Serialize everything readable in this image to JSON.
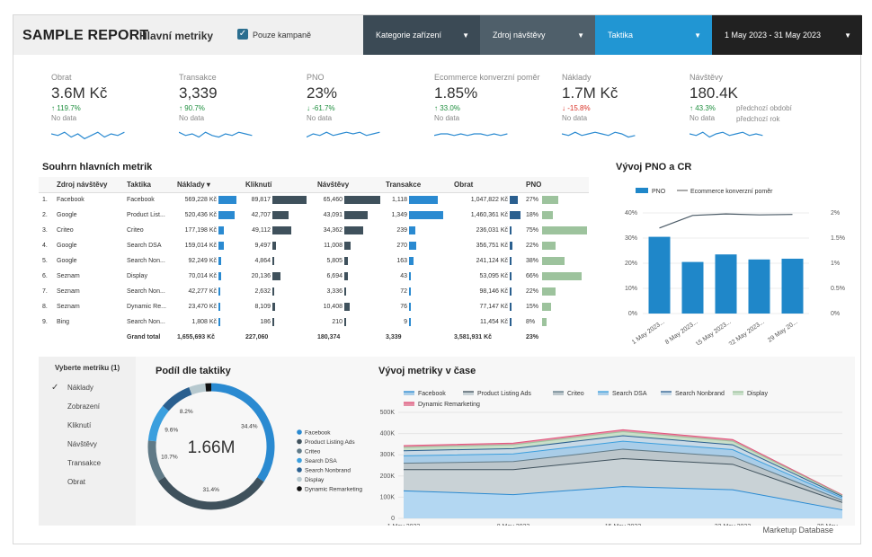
{
  "header": {
    "brand": "SAMPLE REPORT",
    "subtitle": "Hlavní metriky",
    "checkbox_label": "Pouze kampaně",
    "filters": [
      {
        "label": "Kategorie zařízení",
        "color": "#3b4a55"
      },
      {
        "label": "Zdroj návštěvy",
        "color": "#4f5f6a"
      },
      {
        "label": "Taktika",
        "color": "#2196d3"
      },
      {
        "label": "1 May 2023 - 31 May 2023",
        "color": "#212121"
      }
    ]
  },
  "kpis": [
    {
      "label": "Obrat",
      "value": "3.6M Kč",
      "change": "↑ 119.7%",
      "dir": "up",
      "note": "No data"
    },
    {
      "label": "Transakce",
      "value": "3,339",
      "change": "↑ 90.7%",
      "dir": "up",
      "note": "No data"
    },
    {
      "label": "PNO",
      "value": "23%",
      "change": "↓ -61.7%",
      "dir": "up",
      "note": "No data"
    },
    {
      "label": "Ecommerce konverzní poměr",
      "value": "1.85%",
      "change": "↑ 33.0%",
      "dir": "up",
      "note": "No data"
    },
    {
      "label": "Náklady",
      "value": "1.7M Kč",
      "change": "↓ -15.8%",
      "dir": "down",
      "note": "No data"
    },
    {
      "label": "Návštěvy",
      "value": "180.4K",
      "change": "↑ 43.3%",
      "dir": "up",
      "note": "No data",
      "extra1": "předchozí období",
      "extra2": "předchozí rok"
    }
  ],
  "summary": {
    "title": "Souhrn hlavních metrik",
    "headers": [
      "",
      "Zdroj návštěvy",
      "Taktika",
      "Náklady ▾",
      "Kliknutí",
      "Návštěvy",
      "Transakce",
      "Obrat",
      "PNO"
    ],
    "rows": [
      {
        "n": "1.",
        "src": "Facebook",
        "tac": "Facebook",
        "cost": "569,228 Kč",
        "cost_v": 569228,
        "clk": "89,817",
        "clk_v": 89817,
        "vis": "65,460",
        "vis_v": 65460,
        "trx": "1,118",
        "trx_v": 1118,
        "rev": "1,047,822 Kč",
        "rev_v": 1047822,
        "pno": "27%",
        "pno_v": 27
      },
      {
        "n": "2.",
        "src": "Google",
        "tac": "Product List...",
        "cost": "520,436 Kč",
        "cost_v": 520436,
        "clk": "42,707",
        "clk_v": 42707,
        "vis": "43,091",
        "vis_v": 43091,
        "trx": "1,349",
        "trx_v": 1349,
        "rev": "1,460,361 Kč",
        "rev_v": 1460361,
        "pno": "18%",
        "pno_v": 18
      },
      {
        "n": "3.",
        "src": "Criteo",
        "tac": "Criteo",
        "cost": "177,198 Kč",
        "cost_v": 177198,
        "clk": "49,112",
        "clk_v": 49112,
        "vis": "34,362",
        "vis_v": 34362,
        "trx": "239",
        "trx_v": 239,
        "rev": "236,031 Kč",
        "rev_v": 236031,
        "pno": "75%",
        "pno_v": 75
      },
      {
        "n": "4.",
        "src": "Google",
        "tac": "Search DSA",
        "cost": "159,014 Kč",
        "cost_v": 159014,
        "clk": "9,497",
        "clk_v": 9497,
        "vis": "11,008",
        "vis_v": 11008,
        "trx": "270",
        "trx_v": 270,
        "rev": "356,751 Kč",
        "rev_v": 356751,
        "pno": "22%",
        "pno_v": 22
      },
      {
        "n": "5.",
        "src": "Google",
        "tac": "Search Non...",
        "cost": "92,249 Kč",
        "cost_v": 92249,
        "clk": "4,864",
        "clk_v": 4864,
        "vis": "5,805",
        "vis_v": 5805,
        "trx": "163",
        "trx_v": 163,
        "rev": "241,124 Kč",
        "rev_v": 241124,
        "pno": "38%",
        "pno_v": 38
      },
      {
        "n": "6.",
        "src": "Seznam",
        "tac": "Display",
        "cost": "70,014 Kč",
        "cost_v": 70014,
        "clk": "20,136",
        "clk_v": 20136,
        "vis": "6,694",
        "vis_v": 6694,
        "trx": "43",
        "trx_v": 43,
        "rev": "53,095 Kč",
        "rev_v": 53095,
        "pno": "66%",
        "pno_v": 66
      },
      {
        "n": "7.",
        "src": "Seznam",
        "tac": "Search Non...",
        "cost": "42,277 Kč",
        "cost_v": 42277,
        "clk": "2,632",
        "clk_v": 2632,
        "vis": "3,336",
        "vis_v": 3336,
        "trx": "72",
        "trx_v": 72,
        "rev": "98,146 Kč",
        "rev_v": 98146,
        "pno": "22%",
        "pno_v": 22
      },
      {
        "n": "8.",
        "src": "Seznam",
        "tac": "Dynamic Re...",
        "cost": "23,470 Kč",
        "cost_v": 23470,
        "clk": "8,109",
        "clk_v": 8109,
        "vis": "10,408",
        "vis_v": 10408,
        "trx": "76",
        "trx_v": 76,
        "rev": "77,147 Kč",
        "rev_v": 77147,
        "pno": "15%",
        "pno_v": 15
      },
      {
        "n": "9.",
        "src": "Bing",
        "tac": "Search Non...",
        "cost": "1,808 Kč",
        "cost_v": 1808,
        "clk": "186",
        "clk_v": 186,
        "vis": "210",
        "vis_v": 210,
        "trx": "9",
        "trx_v": 9,
        "rev": "11,454 Kč",
        "rev_v": 11454,
        "pno": "8%",
        "pno_v": 8
      }
    ],
    "total": {
      "label": "Grand total",
      "cost": "1,655,693 Kč",
      "clk": "227,060",
      "vis": "180,374",
      "trx": "3,339",
      "rev": "3,581,931 Kč",
      "pno": "23%"
    }
  },
  "metric_selector": {
    "title": "Vyberte metriku (1)",
    "items": [
      "Náklady",
      "Zobrazení",
      "Kliknutí",
      "Návštěvy",
      "Transakce",
      "Obrat"
    ]
  },
  "footer": "Marketup Database",
  "chart_data": [
    {
      "type": "bar",
      "title": "Vývoj PNO a CR",
      "legend": [
        "PNO",
        "Ecommerce konverzní poměr"
      ],
      "categories": [
        "1 May 2023...",
        "8 May 2023...",
        "15 May 2023...",
        "22 May 2023...",
        "29 May 20..."
      ],
      "series": [
        {
          "name": "PNO",
          "values": [
            30.5,
            20.5,
            23.5,
            21.5,
            21.8
          ]
        },
        {
          "name": "Ecommerce konverzní poměr",
          "values": [
            1.7,
            1.95,
            1.98,
            1.96,
            1.97
          ]
        }
      ],
      "y_ticks": [
        "0%",
        "10%",
        "20%",
        "30%",
        "40%"
      ],
      "y2_ticks": [
        "0%",
        "0.5%",
        "1%",
        "1.5%",
        "2%"
      ],
      "ylim": [
        0,
        40
      ],
      "y2lim": [
        0,
        2
      ]
    },
    {
      "type": "pie",
      "title": "Podíl dle taktiky",
      "center_label": "1.66M",
      "labels": [
        "Facebook",
        "Product Listing Ads",
        "Criteo",
        "Search DSA",
        "Search Nonbrand",
        "Display",
        "Dynamic Remarketing"
      ],
      "values": [
        34.4,
        31.4,
        10.7,
        9.6,
        8.2,
        4.2,
        1.5
      ],
      "slice_labels": [
        "34.4%",
        "31.4%",
        "10.7%",
        "9.6%",
        "8.2%",
        "",
        ""
      ],
      "colors": [
        "#2a8ad1",
        "#3f515c",
        "#607a87",
        "#3b9fde",
        "#2a5f8f",
        "#b7c9cf",
        "#111111"
      ]
    },
    {
      "type": "area",
      "title": "Vývoj metriky v čase",
      "legend": [
        "Facebook",
        "Product Listing Ads",
        "Criteo",
        "Search DSA",
        "Search Nonbrand",
        "Display",
        "Dynamic Remarketing"
      ],
      "x": [
        "1 May 2023",
        "8 May 2023",
        "15 May 2023",
        "22 May 2023",
        "29 May..."
      ],
      "y_ticks": [
        "0",
        "100K",
        "200K",
        "300K",
        "400K",
        "500K"
      ],
      "ylim": [
        0,
        500000
      ],
      "series": [
        {
          "name": "Facebook",
          "values": [
            130000,
            112000,
            150000,
            135000,
            40000
          ],
          "color": "#b3d7f2"
        },
        {
          "name": "Product Listing Ads",
          "values": [
            100000,
            118000,
            132000,
            120000,
            35000
          ],
          "color": "#c9d2d6"
        },
        {
          "name": "Criteo",
          "values": [
            30000,
            38000,
            44000,
            36000,
            10000
          ],
          "color": "#bcc6cb"
        },
        {
          "name": "Search DSA",
          "values": [
            35000,
            36000,
            38000,
            33000,
            11000
          ],
          "color": "#a9cde8"
        },
        {
          "name": "Search Nonbrand",
          "values": [
            24000,
            25000,
            26000,
            23000,
            7000
          ],
          "color": "#c8d9e6"
        },
        {
          "name": "Display",
          "values": [
            16000,
            18000,
            19000,
            17000,
            5000
          ],
          "color": "#c9dfc9"
        },
        {
          "name": "Dynamic Remarketing",
          "values": [
            8000,
            8000,
            9000,
            8000,
            3000
          ],
          "color": "#e58fa6"
        }
      ]
    }
  ]
}
